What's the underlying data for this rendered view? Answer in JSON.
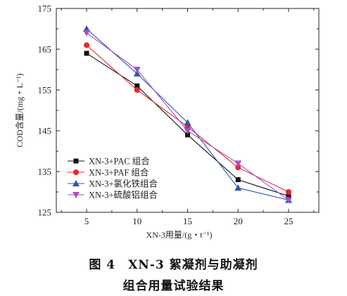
{
  "chart_data": {
    "type": "line",
    "title": "",
    "xlabel": "XN-3用量/(g・t⁻¹)",
    "ylabel": "COD含量/(mg・L⁻¹)",
    "x": [
      5,
      10,
      15,
      20,
      25
    ],
    "xlim": [
      2,
      28
    ],
    "xticks": [
      "5",
      "10",
      "15",
      "20",
      "25"
    ],
    "ylim": [
      125,
      175
    ],
    "yticks": [
      "125",
      "135",
      "145",
      "155",
      "165",
      "175"
    ],
    "legend_position": "bottom-left",
    "grid": false,
    "series": [
      {
        "name": "XN-3+PAC 组合",
        "marker": "square",
        "color": "#111111",
        "values": [
          164,
          156,
          144,
          133,
          129
        ]
      },
      {
        "name": "XN-3+PAF 组合",
        "marker": "circle",
        "color": "#e8262a",
        "values": [
          166,
          155,
          146,
          136,
          130
        ]
      },
      {
        "name": "XN-3+氯化铁组合",
        "marker": "triangle-up",
        "color": "#2f55b5",
        "values": [
          170,
          159,
          147,
          131,
          128
        ]
      },
      {
        "name": "XN-3+硫酸铝组合",
        "marker": "triangle-down",
        "color": "#a44fc8",
        "values": [
          169,
          160,
          145,
          137,
          128
        ]
      }
    ]
  },
  "caption": {
    "line1": "图 4　XN-3 絮凝剂与助凝剂",
    "line2": "组合用量试验结果"
  }
}
